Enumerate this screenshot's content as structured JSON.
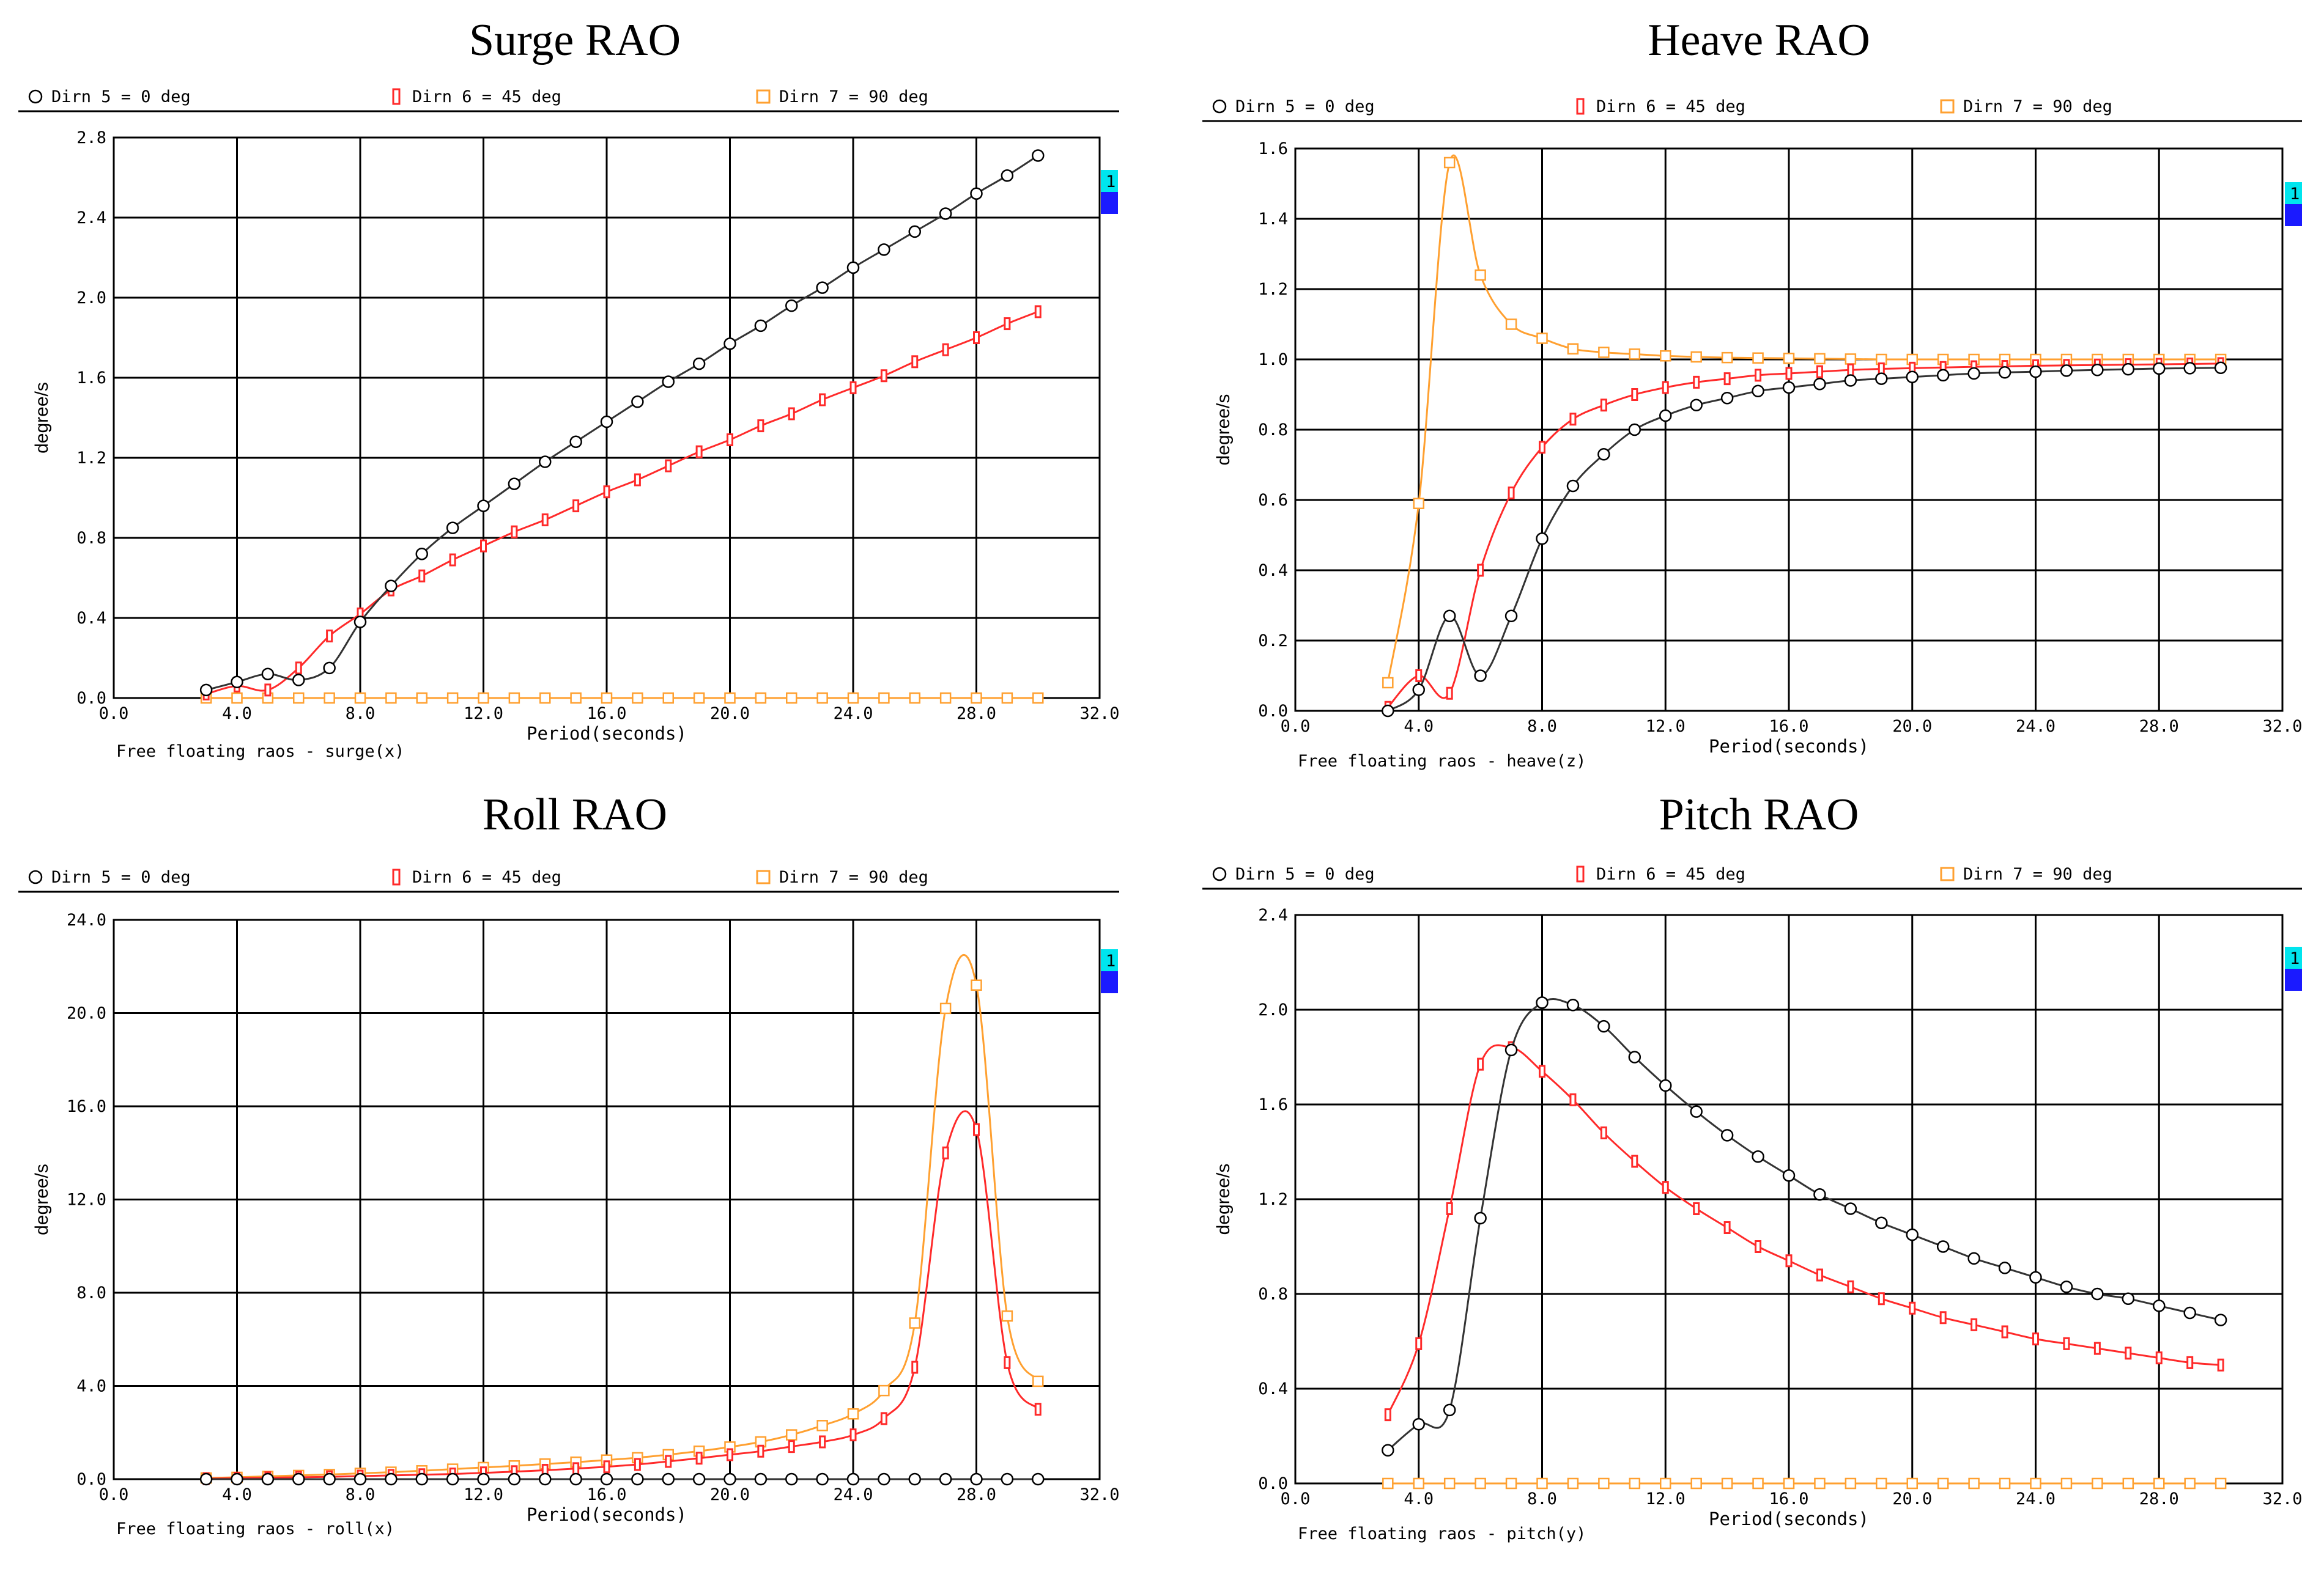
{
  "chart_data": [
    {
      "type": "line",
      "title": "Surge RAO",
      "xlabel": "Period(seconds)",
      "ylabel": "degree/s",
      "caption": "Free floating raos - surge(x)",
      "xlim": [
        0,
        32
      ],
      "ylim": [
        0,
        2.8
      ],
      "xticks": [
        "0.0",
        "4.0",
        "8.0",
        "12.0",
        "16.0",
        "20.0",
        "24.0",
        "28.0",
        "32.0"
      ],
      "yticks": [
        "0.0",
        "0.4",
        "0.8",
        "1.2",
        "1.6",
        "2.0",
        "2.4",
        "2.8"
      ],
      "x": [
        3,
        4,
        5,
        6,
        7,
        8,
        9,
        10,
        11,
        12,
        13,
        14,
        15,
        16,
        17,
        18,
        19,
        20,
        21,
        22,
        23,
        24,
        25,
        26,
        27,
        28,
        29,
        30
      ],
      "series": [
        {
          "name": "Dirn 5 = 0 deg",
          "color": "#333333",
          "marker": "circle",
          "values": [
            0.04,
            0.08,
            0.12,
            0.09,
            0.15,
            0.38,
            0.56,
            0.72,
            0.85,
            0.96,
            1.07,
            1.18,
            1.28,
            1.38,
            1.48,
            1.58,
            1.67,
            1.77,
            1.86,
            1.96,
            2.05,
            2.15,
            2.24,
            2.33,
            2.42,
            2.52,
            2.61,
            2.71
          ]
        },
        {
          "name": "Dirn 6 = 45 deg",
          "color": "#ff2a2a",
          "marker": "bar",
          "values": [
            0.02,
            0.06,
            0.04,
            0.15,
            0.31,
            0.42,
            0.54,
            0.61,
            0.69,
            0.76,
            0.83,
            0.89,
            0.96,
            1.03,
            1.09,
            1.16,
            1.23,
            1.29,
            1.36,
            1.42,
            1.49,
            1.55,
            1.61,
            1.68,
            1.74,
            1.8,
            1.87,
            1.93
          ]
        },
        {
          "name": "Dirn 7 = 90 deg",
          "color": "#ffa030",
          "marker": "square",
          "values": [
            0.0,
            0.0,
            0.0,
            0.0,
            0.0,
            0.0,
            0.0,
            0.0,
            0.0,
            0.0,
            0.0,
            0.0,
            0.0,
            0.0,
            0.0,
            0.0,
            0.0,
            0.0,
            0.0,
            0.0,
            0.0,
            0.0,
            0.0,
            0.0,
            0.0,
            0.0,
            0.0,
            0.0
          ]
        }
      ]
    },
    {
      "type": "line",
      "title": "Heave RAO",
      "xlabel": "Period(seconds)",
      "ylabel": "degree/s",
      "caption": "Free floating raos - heave(z)",
      "xlim": [
        0,
        32
      ],
      "ylim": [
        0,
        1.6
      ],
      "xticks": [
        "0.0",
        "4.0",
        "8.0",
        "12.0",
        "16.0",
        "20.0",
        "24.0",
        "28.0",
        "32.0"
      ],
      "yticks": [
        "0.0",
        "0.2",
        "0.4",
        "0.6",
        "0.8",
        "1.0",
        "1.2",
        "1.4",
        "1.6"
      ],
      "x": [
        3,
        4,
        5,
        6,
        7,
        8,
        9,
        10,
        11,
        12,
        13,
        14,
        15,
        16,
        17,
        18,
        19,
        20,
        21,
        22,
        23,
        24,
        25,
        26,
        27,
        28,
        29,
        30
      ],
      "series": [
        {
          "name": "Dirn 5 = 0 deg",
          "color": "#333333",
          "marker": "circle",
          "values": [
            0.0,
            0.06,
            0.27,
            0.1,
            0.27,
            0.49,
            0.64,
            0.73,
            0.8,
            0.84,
            0.87,
            0.89,
            0.91,
            0.92,
            0.93,
            0.94,
            0.945,
            0.95,
            0.955,
            0.96,
            0.963,
            0.965,
            0.968,
            0.97,
            0.972,
            0.974,
            0.975,
            0.976
          ]
        },
        {
          "name": "Dirn 6 = 45 deg",
          "color": "#ff2a2a",
          "marker": "bar",
          "values": [
            0.01,
            0.1,
            0.05,
            0.4,
            0.62,
            0.75,
            0.83,
            0.87,
            0.9,
            0.92,
            0.935,
            0.945,
            0.955,
            0.96,
            0.965,
            0.97,
            0.973,
            0.975,
            0.977,
            0.979,
            0.98,
            0.982,
            0.983,
            0.984,
            0.985,
            0.986,
            0.987,
            0.988
          ]
        },
        {
          "name": "Dirn 7 = 90 deg",
          "color": "#ffa030",
          "marker": "square",
          "values": [
            0.08,
            0.59,
            1.56,
            1.24,
            1.1,
            1.06,
            1.03,
            1.02,
            1.015,
            1.01,
            1.007,
            1.005,
            1.004,
            1.003,
            1.002,
            1.001,
            1.0,
            1.0,
            1.0,
            1.0,
            1.0,
            1.0,
            1.0,
            1.0,
            1.0,
            1.0,
            1.0,
            1.0
          ]
        }
      ]
    },
    {
      "type": "line",
      "title": "Roll RAO",
      "xlabel": "Period(seconds)",
      "ylabel": "degree/s",
      "caption": "Free floating raos - roll(x)",
      "xlim": [
        0,
        32
      ],
      "ylim": [
        0,
        24
      ],
      "xticks": [
        "0.0",
        "4.0",
        "8.0",
        "12.0",
        "16.0",
        "20.0",
        "24.0",
        "28.0",
        "32.0"
      ],
      "yticks": [
        "0.0",
        "4.0",
        "8.0",
        "12.0",
        "16.0",
        "20.0",
        "24.0"
      ],
      "x": [
        3,
        4,
        5,
        6,
        7,
        8,
        9,
        10,
        11,
        12,
        13,
        14,
        15,
        16,
        17,
        18,
        19,
        20,
        21,
        22,
        23,
        24,
        25,
        26,
        27,
        28,
        29,
        30
      ],
      "series": [
        {
          "name": "Dirn 5 = 0 deg",
          "color": "#333333",
          "marker": "circle",
          "values": [
            0.0,
            0.0,
            0.0,
            0.0,
            0.0,
            0.0,
            0.0,
            0.0,
            0.0,
            0.0,
            0.0,
            0.0,
            0.0,
            0.0,
            0.0,
            0.0,
            0.0,
            0.0,
            0.0,
            0.0,
            0.0,
            0.0,
            0.0,
            0.0,
            0.0,
            0.0,
            0.0,
            0.0
          ]
        },
        {
          "name": "Dirn 6 = 45 deg",
          "color": "#ff2a2a",
          "marker": "bar",
          "values": [
            0.02,
            0.04,
            0.06,
            0.08,
            0.1,
            0.13,
            0.16,
            0.19,
            0.22,
            0.27,
            0.32,
            0.38,
            0.45,
            0.53,
            0.63,
            0.76,
            0.9,
            1.05,
            1.2,
            1.4,
            1.6,
            1.9,
            2.6,
            4.8,
            14.0,
            15.0,
            5.0,
            3.0
          ]
        },
        {
          "name": "Dirn 7 = 90 deg",
          "color": "#ffa030",
          "marker": "square",
          "values": [
            0.05,
            0.08,
            0.12,
            0.16,
            0.2,
            0.25,
            0.3,
            0.36,
            0.43,
            0.5,
            0.57,
            0.65,
            0.73,
            0.82,
            0.92,
            1.05,
            1.2,
            1.38,
            1.6,
            1.9,
            2.3,
            2.8,
            3.8,
            6.7,
            20.2,
            21.2,
            7.0,
            4.2
          ]
        }
      ]
    },
    {
      "type": "line",
      "title": "Pitch RAO",
      "xlabel": "Period(seconds)",
      "ylabel": "degree/s",
      "caption": "Free floating raos - pitch(y)",
      "xlim": [
        0,
        32
      ],
      "ylim": [
        0,
        2.4
      ],
      "xticks": [
        "0.0",
        "4.0",
        "8.0",
        "12.0",
        "16.0",
        "20.0",
        "24.0",
        "28.0",
        "32.0"
      ],
      "yticks": [
        "0.0",
        "0.4",
        "0.8",
        "1.2",
        "1.6",
        "2.0",
        "2.4"
      ],
      "x": [
        3,
        4,
        5,
        6,
        7,
        8,
        9,
        10,
        11,
        12,
        13,
        14,
        15,
        16,
        17,
        18,
        19,
        20,
        21,
        22,
        23,
        24,
        25,
        26,
        27,
        28,
        29,
        30
      ],
      "series": [
        {
          "name": "Dirn 5 = 0 deg",
          "color": "#333333",
          "marker": "circle",
          "values": [
            0.14,
            0.25,
            0.31,
            1.12,
            1.83,
            2.03,
            2.02,
            1.93,
            1.8,
            1.68,
            1.57,
            1.47,
            1.38,
            1.3,
            1.22,
            1.16,
            1.1,
            1.05,
            1.0,
            0.95,
            0.91,
            0.87,
            0.83,
            0.8,
            0.78,
            0.75,
            0.72,
            0.69
          ]
        },
        {
          "name": "Dirn 6 = 45 deg",
          "color": "#ff2a2a",
          "marker": "bar",
          "values": [
            0.29,
            0.59,
            1.16,
            1.77,
            1.84,
            1.74,
            1.62,
            1.48,
            1.36,
            1.25,
            1.16,
            1.08,
            1.0,
            0.94,
            0.88,
            0.83,
            0.78,
            0.74,
            0.7,
            0.67,
            0.64,
            0.61,
            0.59,
            0.57,
            0.55,
            0.53,
            0.51,
            0.5
          ]
        },
        {
          "name": "Dirn 7 = 90 deg",
          "color": "#ffa030",
          "marker": "square",
          "values": [
            0.0,
            0.0,
            0.0,
            0.0,
            0.0,
            0.0,
            0.0,
            0.0,
            0.0,
            0.0,
            0.0,
            0.0,
            0.0,
            0.0,
            0.0,
            0.0,
            0.0,
            0.0,
            0.0,
            0.0,
            0.0,
            0.0,
            0.0,
            0.0,
            0.0,
            0.0,
            0.0,
            0.0
          ]
        }
      ]
    }
  ],
  "side_badge": {
    "label": "1",
    "top_color": "#00e5ee",
    "bottom_color": "#1a1aff"
  }
}
